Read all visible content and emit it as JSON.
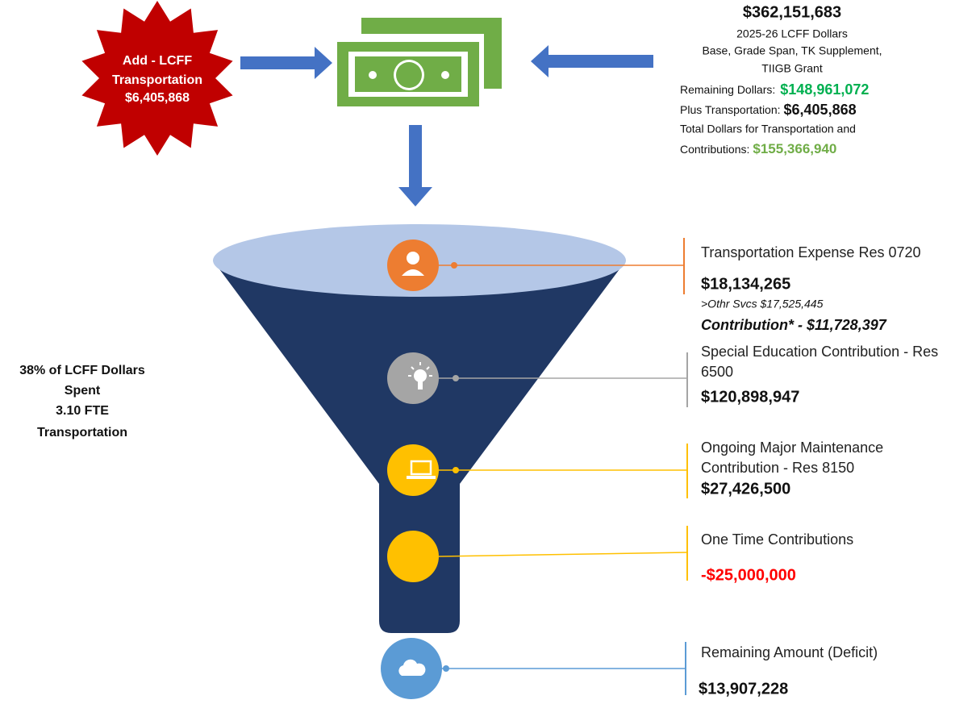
{
  "starburst": {
    "lines": [
      "Add - LCFF",
      "Transportation",
      "$6,405,868"
    ]
  },
  "summary": {
    "total": "$362,151,683",
    "lines": [
      "2025-26 LCFF Dollars",
      "Base, Grade Span, TK Supplement,",
      "TIIGB Grant"
    ],
    "remaining": {
      "label": "Remaining Dollars:",
      "value": "$148,961,072"
    },
    "plus": {
      "label": "Plus Transportation:",
      "value": "$6,405,868"
    },
    "total_dollars": {
      "line1": "Total Dollars for Transportation and",
      "label": "Contributions:",
      "value": "$155,366,940"
    }
  },
  "side_note": {
    "lines": [
      "38% of LCFF Dollars",
      "Spent",
      "3.10 FTE",
      "Transportation"
    ]
  },
  "items": [
    {
      "label_lines": [
        "Transportation Expense Res 0720"
      ],
      "amount": "$18,134,265",
      "detail": ">Othr Svcs $17,525,445",
      "contribution": "Contribution* -  $11,728,397"
    },
    {
      "label_lines": [
        "Special Education Contribution - Res",
        "6500"
      ],
      "amount": "$120,898,947"
    },
    {
      "label_lines": [
        "Ongoing Major Maintenance",
        "Contribution  - Res 8150"
      ],
      "amount": "$27,426,500"
    },
    {
      "label_lines": [
        "One Time Contributions"
      ],
      "amount": "-$25,000,000"
    },
    {
      "label_lines": [
        "Remaining Amount (Deficit)"
      ],
      "amount": "$13,907,228"
    }
  ]
}
